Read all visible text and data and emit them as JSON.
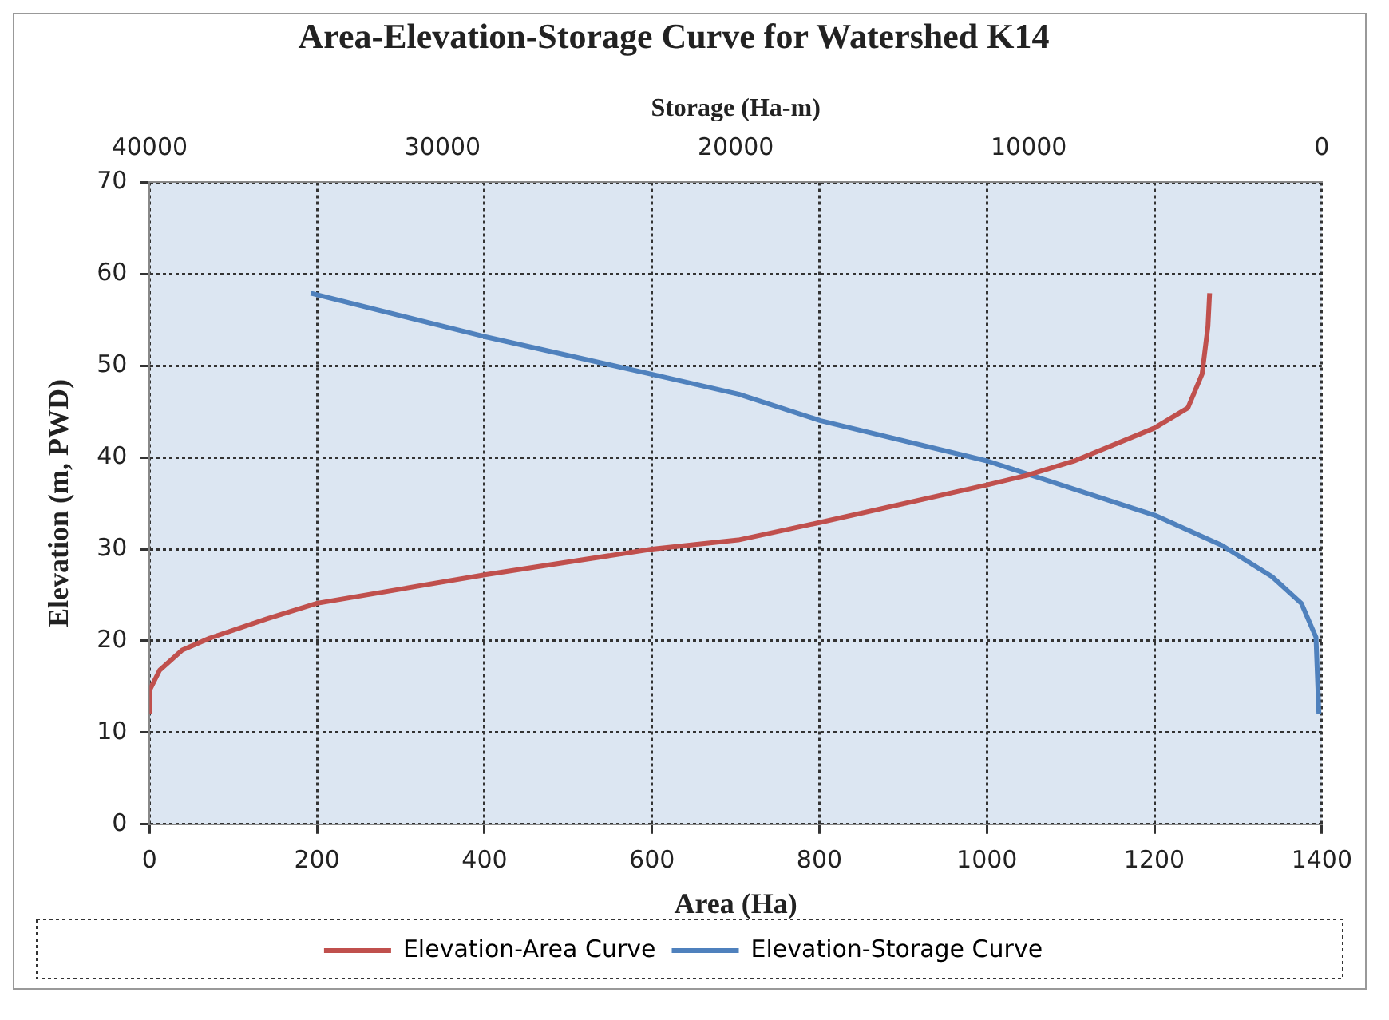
{
  "chart_data": {
    "type": "line",
    "title": "Area-Elevation-Storage Curve for Watershed K14",
    "xlabel": "Area (Ha)",
    "x2label": "Storage (Ha-m)",
    "ylabel": "Elevation (m, PWD)",
    "xlim": [
      0,
      1400
    ],
    "xticks": [
      0,
      200,
      400,
      600,
      800,
      1000,
      1200,
      1400
    ],
    "x2lim": [
      40000,
      0
    ],
    "x2ticks": [
      40000,
      30000,
      20000,
      10000,
      0
    ],
    "ylim": [
      0,
      70
    ],
    "yticks": [
      0,
      10,
      20,
      30,
      40,
      50,
      60,
      70
    ],
    "grid": true,
    "legend": "bottom",
    "marker": "none",
    "line_style": "solid",
    "series": [
      {
        "name": "Elevation-Area Curve",
        "color": "#c0504d",
        "x": [
          0,
          0,
          12,
          39,
          72,
          140,
          200,
          400,
          600,
          703,
          800,
          1000,
          1050,
          1104,
          1200,
          1240,
          1257,
          1264,
          1266
        ],
        "values": [
          12,
          14.6,
          16.8,
          19,
          20.3,
          22.4,
          24.1,
          27.2,
          30,
          31,
          32.9,
          37,
          38.1,
          39.6,
          43.2,
          45.4,
          49.1,
          54.3,
          57.9
        ]
      },
      {
        "name": "Elevation-Storage Curve",
        "color": "#4f81bd",
        "axis": "x2",
        "x": [
          34500,
          28600,
          22900,
          19900,
          17100,
          11400,
          5700,
          3400,
          1700,
          700,
          200,
          100
        ],
        "values": [
          57.9,
          53.2,
          49.1,
          46.9,
          44,
          39.6,
          33.7,
          30.4,
          27,
          24.1,
          20.4,
          12
        ]
      }
    ]
  }
}
